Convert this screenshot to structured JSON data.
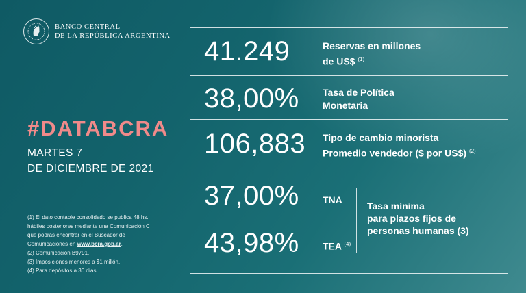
{
  "brand": {
    "line1": "BANCO CENTRAL",
    "line2": "DE LA REPÚBLICA ARGENTINA",
    "emblem_icon": "liberty-head-medallion-icon"
  },
  "hashtag": "#DATABCRA",
  "date": {
    "line1": "MARTES 7",
    "line2": "DE DICIEMBRE DE 2021"
  },
  "notes": {
    "n1a": "(1) El dato contable consolidado se publica 48 hs.",
    "n1b": "hábiles posteriores mediante una Comunicación C",
    "n1c": "que podrás encontrar en el Buscador de",
    "n1d_prefix": "Comunicaciones en ",
    "n1d_link": "www.bcra.gob.ar",
    "n1d_suffix": ".",
    "n2": "(2) Comunicación B9791.",
    "n3": "(3) Imposiciones menores a $1 millón.",
    "n4": "(4) Para depósitos a 30 días."
  },
  "metrics": {
    "reservas": {
      "value": "41.249",
      "label1": "Reservas en millones",
      "label2": "de US$",
      "note": "(1)"
    },
    "tasa_politica": {
      "value": "38,00%",
      "label1": "Tasa de Política",
      "label2": "Monetaria"
    },
    "tipo_cambio": {
      "value": "106,883",
      "label1": "Tipo de cambio minorista",
      "label2": "Promedio vendedor  ($ por US$)",
      "note": "(2)"
    },
    "tna": {
      "value": "37,00%",
      "label": "TNA"
    },
    "tea": {
      "value": "43,98%",
      "label": "TEA",
      "note": "(4)"
    },
    "plazo_fijo": {
      "label1": "Tasa mínima",
      "label2": "para plazos fijos de",
      "label3": "personas humanas",
      "note": "(3)"
    }
  },
  "colors": {
    "background": "#13636c",
    "accent_hashtag": "#f08a8a",
    "text": "#ffffff"
  }
}
